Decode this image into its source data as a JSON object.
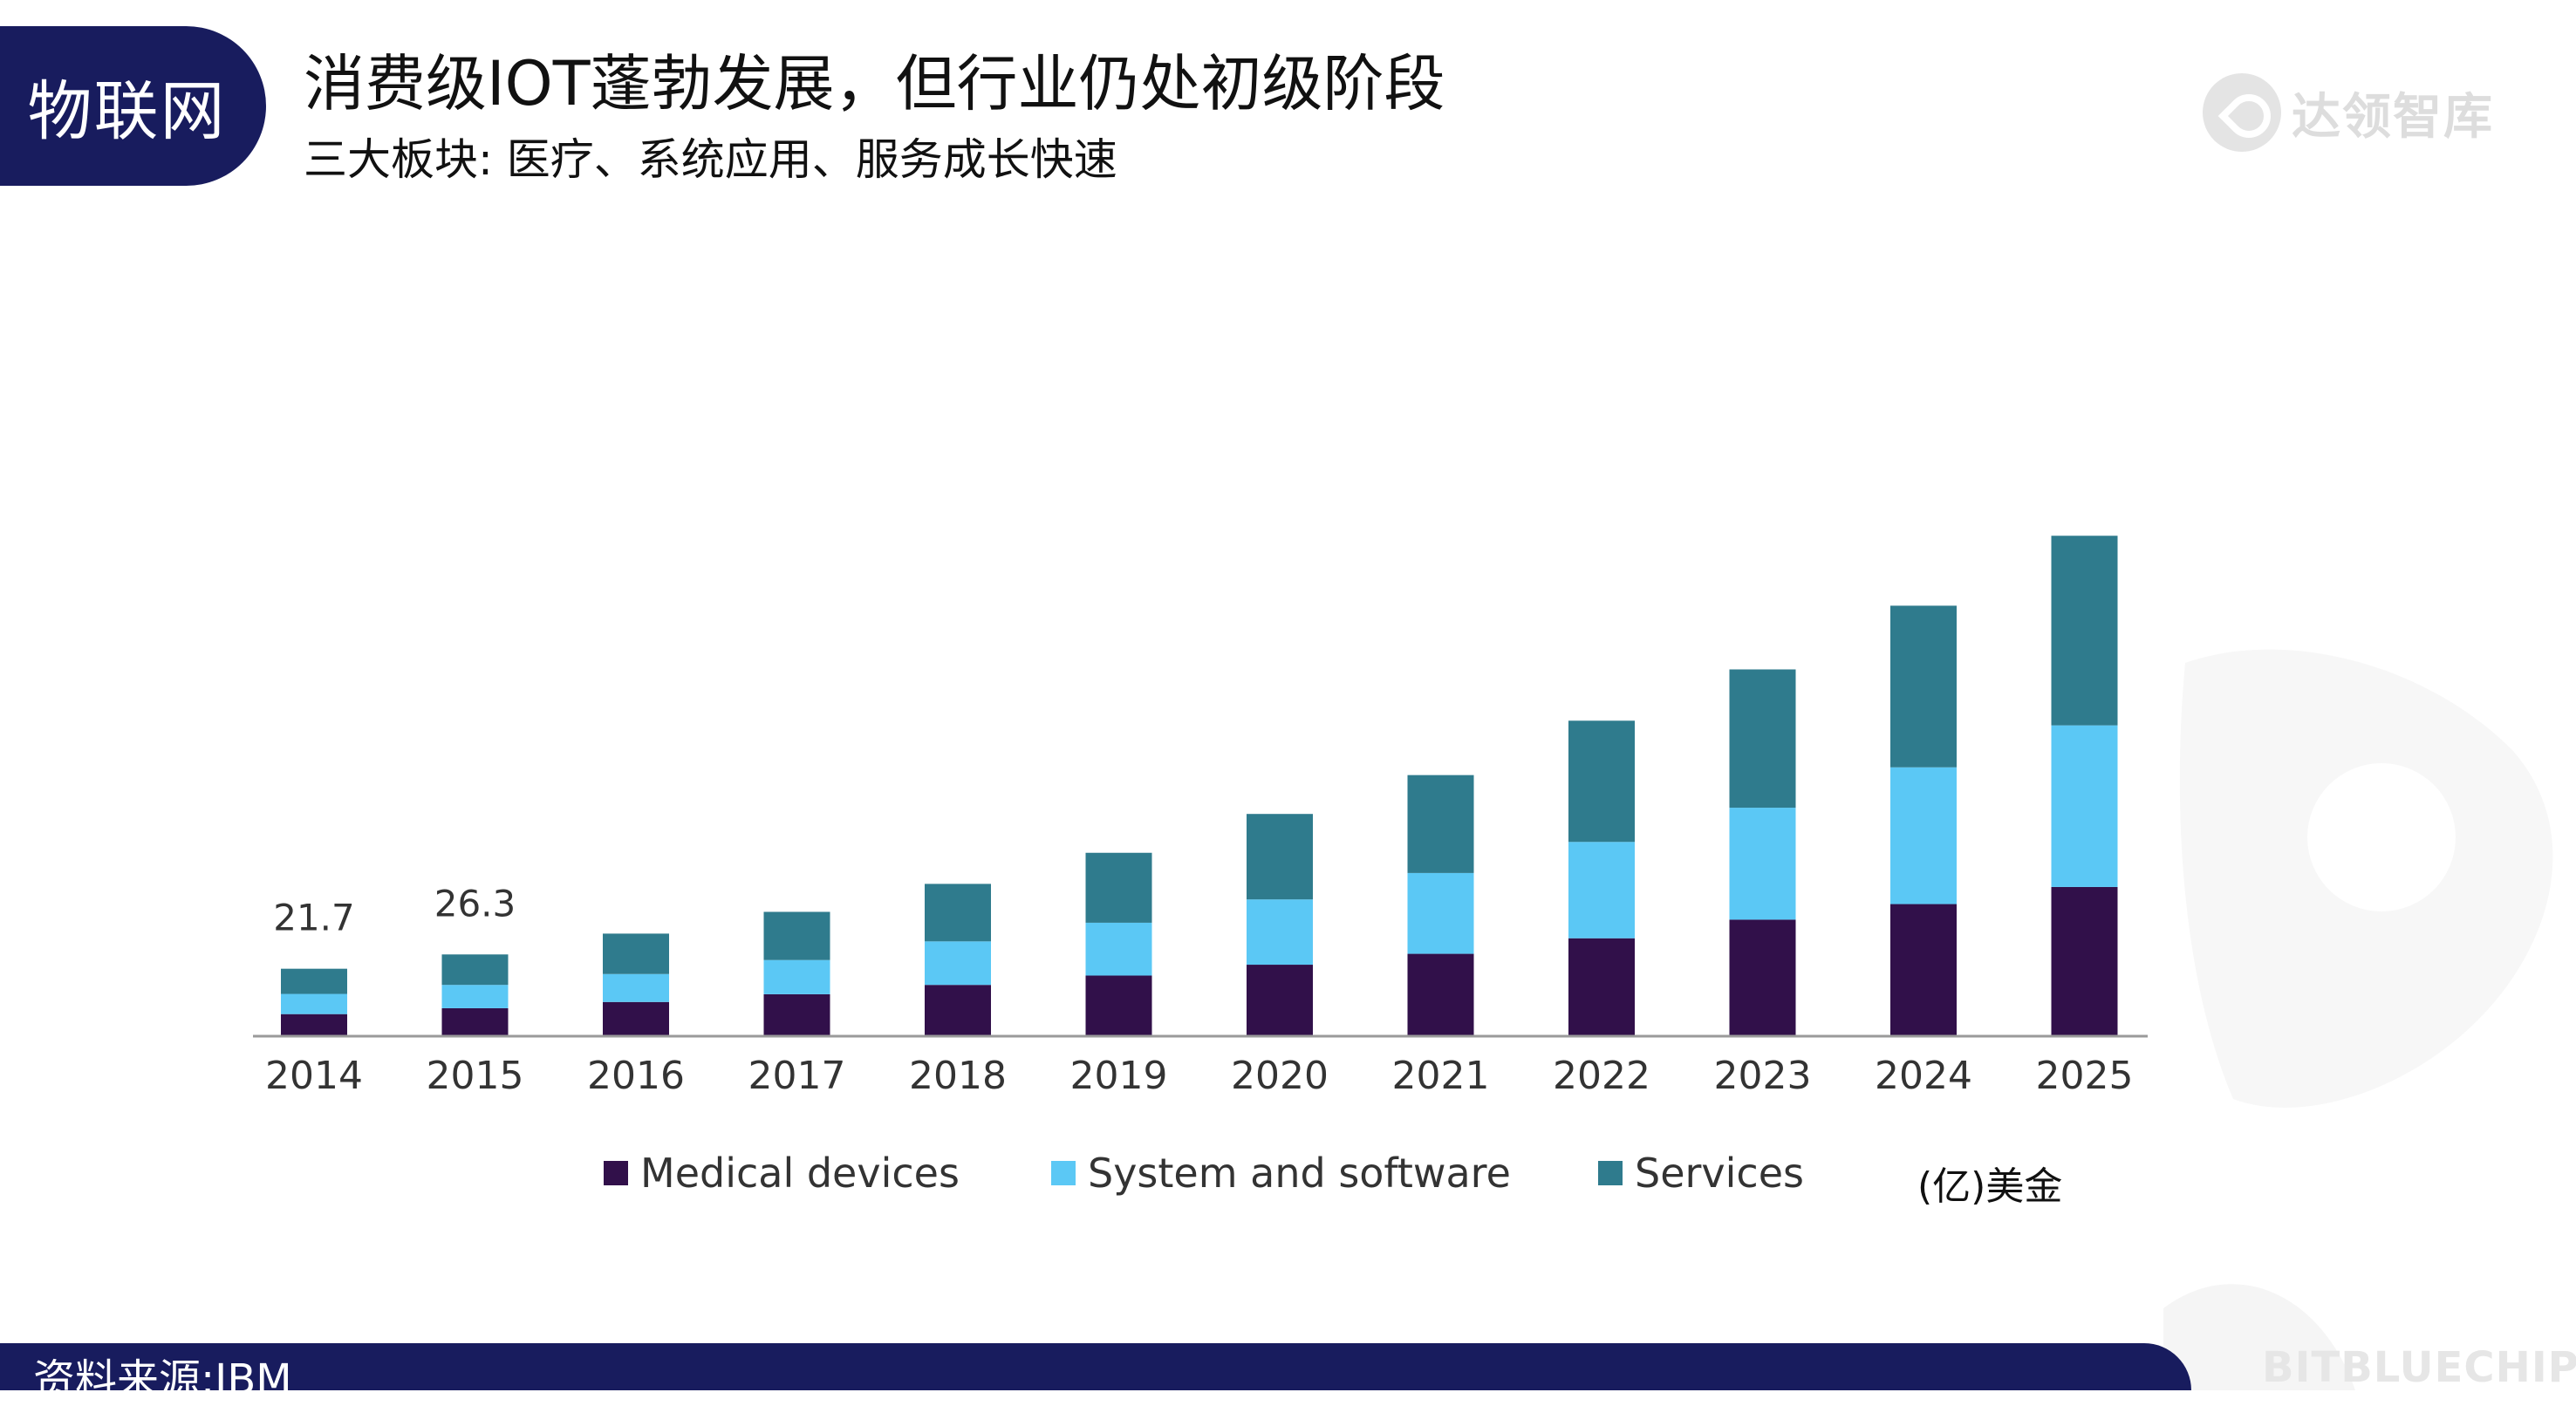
{
  "tag": "物联网",
  "title": "消费级IOT蓬勃发展，但行业仍处初级阶段",
  "subtitle": "三大板块: 医疗、系统应用、服务成长快速",
  "logo_text": "达领智库",
  "unit": "(亿)美金",
  "source": "资料来源:IBM",
  "watermark": "BITBLUECHIP",
  "chart_data": {
    "type": "bar",
    "stacked": true,
    "categories": [
      "2014",
      "2015",
      "2016",
      "2017",
      "2018",
      "2019",
      "2020",
      "2021",
      "2022",
      "2023",
      "2024",
      "2025"
    ],
    "series": [
      {
        "name": "Medical devices",
        "color": "#31104a",
        "values": [
          7.1,
          9.0,
          11.0,
          13.5,
          16.5,
          19.5,
          23.0,
          26.5,
          31.5,
          37.5,
          42.5,
          48.0
        ]
      },
      {
        "name": "System and software",
        "color": "#5bc8f5",
        "values": [
          6.5,
          7.5,
          9.0,
          11.0,
          14.0,
          17.0,
          21.0,
          26.0,
          31.0,
          36.0,
          44.0,
          52.0
        ]
      },
      {
        "name": "Services",
        "color": "#2f7b8d",
        "values": [
          8.1,
          9.8,
          13.0,
          15.5,
          18.5,
          22.5,
          27.5,
          31.5,
          39.0,
          44.5,
          52.0,
          61.0
        ]
      }
    ],
    "totals_labeled": [
      {
        "category": "2014",
        "label": "21.7"
      },
      {
        "category": "2015",
        "label": "26.3"
      }
    ],
    "ylim": [
      0,
      165
    ],
    "grid": false,
    "legend_position": "bottom"
  }
}
